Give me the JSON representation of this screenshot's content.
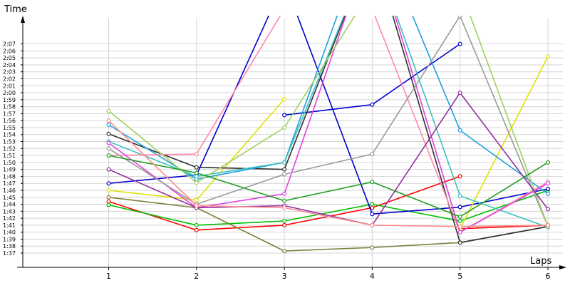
{
  "chart_data": {
    "type": "line",
    "title": "",
    "xlabel": "Laps",
    "ylabel": "Time",
    "x": [
      1,
      2,
      3,
      4,
      5,
      6
    ],
    "x_ticks": [
      "1",
      "2",
      "3",
      "4",
      "5",
      "6"
    ],
    "ylim_seconds": [
      94,
      131
    ],
    "y_ticks": [
      "1:37",
      "1:38",
      "1:39",
      "1:40",
      "1:41",
      "1:42",
      "1:43",
      "1:44",
      "1:45",
      "1:46",
      "1:47",
      "1:48",
      "1:49",
      "1:50",
      "1:51",
      "1:52",
      "1:53",
      "1:54",
      "1:55",
      "1:56",
      "1:57",
      "1:58",
      "1:59",
      "2:00",
      "2:01",
      "2:02",
      "2:03",
      "2:04",
      "2:05",
      "2:06",
      "2:07"
    ],
    "grid": true,
    "legend": "none",
    "y_unit": "seconds",
    "series": [
      {
        "color": "#ff0000",
        "values": [
          104.4,
          100.3,
          101.0,
          103.5,
          108.0,
          null
        ]
      },
      {
        "color": "#ff0000",
        "values": [
          null,
          null,
          null,
          null,
          100.5,
          101.0
        ]
      },
      {
        "color": "#00c000",
        "values": [
          103.9,
          101.0,
          101.6,
          104.0,
          101.6,
          106.0
        ]
      },
      {
        "color": "#808040",
        "values": [
          105.0,
          103.5,
          97.3,
          97.8,
          98.5,
          100.8
        ]
      },
      {
        "color": "#0000cc",
        "values": [
          107.0,
          108.2,
          136.0,
          102.6,
          103.6,
          106.2
        ]
      },
      {
        "color": "#0000cc",
        "values": [
          null,
          null,
          116.8,
          118.3,
          127.0,
          null
        ]
      },
      {
        "color": "#e0e000",
        "values": [
          106.0,
          104.6,
          119.1,
          null,
          null,
          null
        ]
      },
      {
        "color": "#e0e000",
        "values": [
          null,
          null,
          null,
          null,
          100.5,
          125.2
        ]
      },
      {
        "color": "#303030",
        "values": [
          114.1,
          109.3,
          109.0,
          141.0,
          98.5,
          100.8
        ]
      },
      {
        "color": "#1ea0e0",
        "values": [
          115.4,
          107.6,
          110.0,
          145.0,
          114.6,
          105.5
        ]
      },
      {
        "color": "#40c0c0",
        "values": [
          113.0,
          108.0,
          110.0,
          141.0,
          105.2,
          100.7
        ]
      },
      {
        "color": "#ff88aa",
        "values": [
          111.0,
          111.2,
          132.0,
          132.0,
          100.0,
          107.2
        ]
      },
      {
        "color": "#e040e0",
        "values": [
          112.8,
          103.5,
          105.5,
          142.0,
          100.0,
          107.0
        ]
      },
      {
        "color": "#9a9a9a",
        "values": [
          112.0,
          104.0,
          108.3,
          111.2,
          131.0,
          100.8
        ]
      },
      {
        "color": "#a0d060",
        "values": [
          117.4,
          107.1,
          115.0,
          135.0,
          135.0,
          100.8
        ]
      },
      {
        "color": "#20a020",
        "values": [
          111.0,
          108.5,
          104.5,
          107.2,
          102.2,
          110.0
        ]
      },
      {
        "color": "#9030a0",
        "values": [
          109.0,
          103.5,
          103.8,
          101.0,
          120.0,
          103.3
        ]
      },
      {
        "color": "#ff8c8c",
        "values": [
          116.0,
          103.8,
          103.5,
          101.0,
          100.8,
          101.0
        ]
      }
    ]
  }
}
